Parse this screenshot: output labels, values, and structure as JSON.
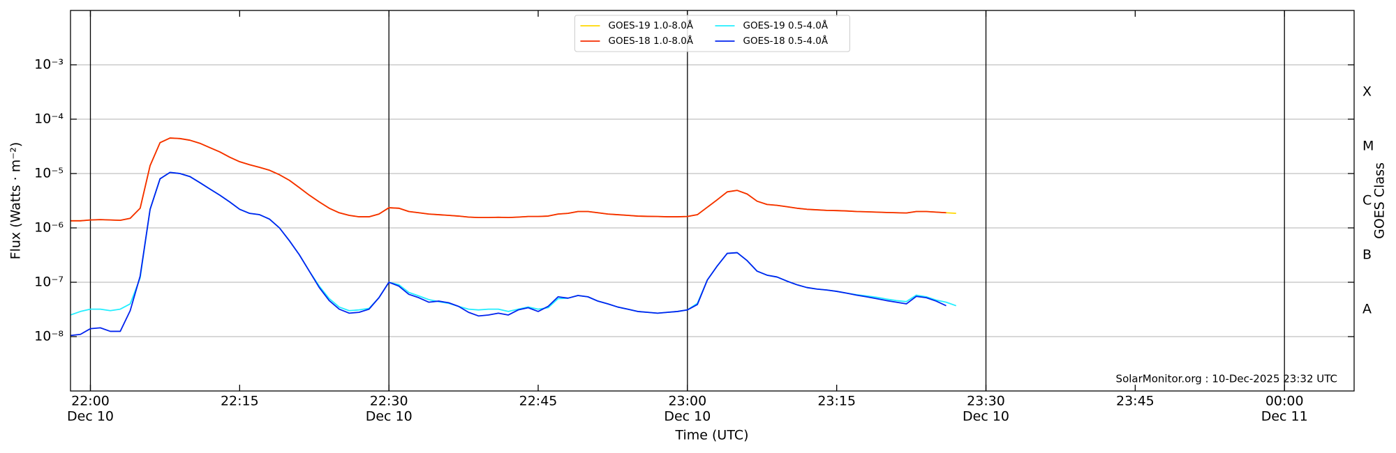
{
  "chart_data": {
    "type": "line",
    "y_label": "Flux (Watts · m⁻²)",
    "x_label": "Time (UTC)",
    "y2_label": "GOES Class",
    "annotation": "SolarMonitor.org : 10-Dec-2025 23:32 UTC",
    "log_scale": true,
    "grid": true,
    "legend_corner": "upper center",
    "xlim": [
      "2025-12-10T21:58",
      "2025-12-11T00:07"
    ],
    "xticks": [
      {
        "value": "2025-12-10T22:00",
        "label": [
          "22:00",
          "Dec 10"
        ]
      },
      {
        "value": "2025-12-10T22:15",
        "label": [
          "22:15"
        ]
      },
      {
        "value": "2025-12-10T22:30",
        "label": [
          "22:30",
          "Dec 10"
        ]
      },
      {
        "value": "2025-12-10T22:45",
        "label": [
          "22:45"
        ]
      },
      {
        "value": "2025-12-10T23:00",
        "label": [
          "23:00",
          "Dec 10"
        ]
      },
      {
        "value": "2025-12-10T23:15",
        "label": [
          "23:15"
        ]
      },
      {
        "value": "2025-12-10T23:30",
        "label": [
          "23:30",
          "Dec 10"
        ]
      },
      {
        "value": "2025-12-10T23:45",
        "label": [
          "23:45"
        ]
      },
      {
        "value": "2025-12-11T00:00",
        "label": [
          "00:00",
          "Dec 11"
        ]
      }
    ],
    "vlines": [
      "2025-12-10T22:00",
      "2025-12-10T22:30",
      "2025-12-10T23:00",
      "2025-12-10T23:30",
      "2025-12-11T00:00"
    ],
    "ylim": [
      1e-09,
      0.01
    ],
    "yticks": [
      {
        "value": 1e-08,
        "label": "10⁻⁸"
      },
      {
        "value": 1e-07,
        "label": "10⁻⁷"
      },
      {
        "value": 1e-06,
        "label": "10⁻⁶"
      },
      {
        "value": 1e-05,
        "label": "10⁻⁵"
      },
      {
        "value": 0.0001,
        "label": "10⁻⁴"
      },
      {
        "value": 0.001,
        "label": "10⁻³"
      }
    ],
    "y2lim": [
      1e-09,
      0.01
    ],
    "y2ticks": [
      {
        "value": 1e-08,
        "label": "A"
      },
      {
        "value": 1e-07,
        "label": "B"
      },
      {
        "value": 1e-06,
        "label": "C"
      },
      {
        "value": 1e-05,
        "label": "M"
      },
      {
        "value": 0.0001,
        "label": "X"
      }
    ],
    "x": [
      "2025-12-10T21:58",
      "2025-12-10T21:59",
      "2025-12-10T22:00",
      "2025-12-10T22:01",
      "2025-12-10T22:02",
      "2025-12-10T22:03",
      "2025-12-10T22:04",
      "2025-12-10T22:05",
      "2025-12-10T22:06",
      "2025-12-10T22:07",
      "2025-12-10T22:08",
      "2025-12-10T22:09",
      "2025-12-10T22:10",
      "2025-12-10T22:11",
      "2025-12-10T22:12",
      "2025-12-10T22:13",
      "2025-12-10T22:14",
      "2025-12-10T22:15",
      "2025-12-10T22:16",
      "2025-12-10T22:17",
      "2025-12-10T22:18",
      "2025-12-10T22:19",
      "2025-12-10T22:20",
      "2025-12-10T22:21",
      "2025-12-10T22:22",
      "2025-12-10T22:23",
      "2025-12-10T22:24",
      "2025-12-10T22:25",
      "2025-12-10T22:26",
      "2025-12-10T22:27",
      "2025-12-10T22:28",
      "2025-12-10T22:29",
      "2025-12-10T22:30",
      "2025-12-10T22:31",
      "2025-12-10T22:32",
      "2025-12-10T22:33",
      "2025-12-10T22:34",
      "2025-12-10T22:35",
      "2025-12-10T22:36",
      "2025-12-10T22:37",
      "2025-12-10T22:38",
      "2025-12-10T22:39",
      "2025-12-10T22:40",
      "2025-12-10T22:41",
      "2025-12-10T22:42",
      "2025-12-10T22:43",
      "2025-12-10T22:44",
      "2025-12-10T22:45",
      "2025-12-10T22:46",
      "2025-12-10T22:47",
      "2025-12-10T22:48",
      "2025-12-10T22:49",
      "2025-12-10T22:50",
      "2025-12-10T22:51",
      "2025-12-10T22:52",
      "2025-12-10T22:53",
      "2025-12-10T22:54",
      "2025-12-10T22:55",
      "2025-12-10T22:56",
      "2025-12-10T22:57",
      "2025-12-10T22:58",
      "2025-12-10T22:59",
      "2025-12-10T23:00",
      "2025-12-10T23:01",
      "2025-12-10T23:02",
      "2025-12-10T23:03",
      "2025-12-10T23:04",
      "2025-12-10T23:05",
      "2025-12-10T23:06",
      "2025-12-10T23:07",
      "2025-12-10T23:08",
      "2025-12-10T23:09",
      "2025-12-10T23:10",
      "2025-12-10T23:11",
      "2025-12-10T23:12",
      "2025-12-10T23:13",
      "2025-12-10T23:14",
      "2025-12-10T23:15",
      "2025-12-10T23:16",
      "2025-12-10T23:17",
      "2025-12-10T23:18",
      "2025-12-10T23:19",
      "2025-12-10T23:20",
      "2025-12-10T23:21",
      "2025-12-10T23:22",
      "2025-12-10T23:23",
      "2025-12-10T23:24",
      "2025-12-10T23:25",
      "2025-12-10T23:26",
      "2025-12-10T23:27"
    ],
    "series": [
      {
        "name": "GOES-19 1.0-8.0Å",
        "color": "#ffd700",
        "values": [
          1.35e-06,
          1.35e-06,
          1.4e-06,
          1.42e-06,
          1.4e-06,
          1.38e-06,
          1.5e-06,
          2.3e-06,
          1.4e-05,
          3.7e-05,
          4.5e-05,
          4.4e-05,
          4.1e-05,
          3.6e-05,
          3e-05,
          2.5e-05,
          2e-05,
          1.65e-05,
          1.45e-05,
          1.3e-05,
          1.15e-05,
          9.5e-06,
          7.5e-06,
          5.5e-06,
          4e-06,
          3e-06,
          2.3e-06,
          1.9e-06,
          1.7e-06,
          1.6e-06,
          1.6e-06,
          1.8e-06,
          2.35e-06,
          2.3e-06,
          2e-06,
          1.9e-06,
          1.8e-06,
          1.75e-06,
          1.7e-06,
          1.65e-06,
          1.58e-06,
          1.55e-06,
          1.55e-06,
          1.57e-06,
          1.55e-06,
          1.58e-06,
          1.62e-06,
          1.62e-06,
          1.65e-06,
          1.8e-06,
          1.85e-06,
          2e-06,
          2e-06,
          1.9e-06,
          1.8e-06,
          1.75e-06,
          1.7e-06,
          1.65e-06,
          1.63e-06,
          1.62e-06,
          1.6e-06,
          1.6e-06,
          1.62e-06,
          1.75e-06,
          2.4e-06,
          3.3e-06,
          4.6e-06,
          4.9e-06,
          4.2e-06,
          3.1e-06,
          2.7e-06,
          2.6e-06,
          2.45e-06,
          2.3e-06,
          2.2e-06,
          2.15e-06,
          2.1e-06,
          2.08e-06,
          2.05e-06,
          2e-06,
          1.98e-06,
          1.95e-06,
          1.92e-06,
          1.9e-06,
          1.88e-06,
          2e-06,
          2e-06,
          1.95e-06,
          1.9e-06,
          1.85e-06
        ]
      },
      {
        "name": "GOES-18 1.0-8.0Å",
        "color": "#f52b00",
        "values": [
          1.35e-06,
          1.35e-06,
          1.4e-06,
          1.42e-06,
          1.4e-06,
          1.38e-06,
          1.5e-06,
          2.3e-06,
          1.4e-05,
          3.7e-05,
          4.5e-05,
          4.4e-05,
          4.1e-05,
          3.6e-05,
          3e-05,
          2.5e-05,
          2e-05,
          1.65e-05,
          1.45e-05,
          1.3e-05,
          1.15e-05,
          9.5e-06,
          7.5e-06,
          5.5e-06,
          4e-06,
          3e-06,
          2.3e-06,
          1.9e-06,
          1.7e-06,
          1.6e-06,
          1.6e-06,
          1.8e-06,
          2.35e-06,
          2.3e-06,
          2e-06,
          1.9e-06,
          1.8e-06,
          1.75e-06,
          1.7e-06,
          1.65e-06,
          1.58e-06,
          1.55e-06,
          1.55e-06,
          1.57e-06,
          1.55e-06,
          1.58e-06,
          1.62e-06,
          1.62e-06,
          1.65e-06,
          1.8e-06,
          1.85e-06,
          2e-06,
          2e-06,
          1.9e-06,
          1.8e-06,
          1.75e-06,
          1.7e-06,
          1.65e-06,
          1.63e-06,
          1.62e-06,
          1.6e-06,
          1.6e-06,
          1.62e-06,
          1.75e-06,
          2.4e-06,
          3.3e-06,
          4.6e-06,
          4.9e-06,
          4.2e-06,
          3.1e-06,
          2.7e-06,
          2.6e-06,
          2.45e-06,
          2.3e-06,
          2.2e-06,
          2.15e-06,
          2.1e-06,
          2.08e-06,
          2.05e-06,
          2e-06,
          1.98e-06,
          1.95e-06,
          1.92e-06,
          1.9e-06,
          1.88e-06,
          2e-06,
          2e-06,
          1.95e-06,
          1.9e-06,
          null
        ]
      },
      {
        "name": "GOES-19 0.5-4.0Å",
        "color": "#22eeff",
        "values": [
          2.5e-08,
          2.9e-08,
          3.2e-08,
          3.2e-08,
          3e-08,
          3.2e-08,
          4e-08,
          1.2e-07,
          2.2e-06,
          8e-06,
          1.05e-05,
          1e-05,
          8.8e-06,
          6.8e-06,
          5.2e-06,
          4e-06,
          3e-06,
          2.2e-06,
          1.85e-06,
          1.75e-06,
          1.45e-06,
          1e-06,
          5.8e-07,
          3.2e-07,
          1.6e-07,
          8.5e-08,
          5e-08,
          3.5e-08,
          3e-08,
          3.1e-08,
          3.3e-08,
          5.2e-08,
          1e-07,
          9e-08,
          6.5e-08,
          5.6e-08,
          4.8e-08,
          4.4e-08,
          4.1e-08,
          3.6e-08,
          3.2e-08,
          3.1e-08,
          3.2e-08,
          3.2e-08,
          2.9e-08,
          3.2e-08,
          3.5e-08,
          3.2e-08,
          3.4e-08,
          5e-08,
          5.1e-08,
          5.7e-08,
          5.4e-08,
          4.5e-08,
          4e-08,
          3.5e-08,
          3.2e-08,
          2.9e-08,
          2.8e-08,
          2.7e-08,
          2.8e-08,
          2.9e-08,
          3.1e-08,
          4.1e-08,
          1.1e-07,
          2e-07,
          3.4e-07,
          3.5e-07,
          2.5e-07,
          1.6e-07,
          1.35e-07,
          1.25e-07,
          1.05e-07,
          9e-08,
          8e-08,
          7.5e-08,
          7.2e-08,
          6.8e-08,
          6.3e-08,
          5.9e-08,
          5.6e-08,
          5.3e-08,
          4.9e-08,
          4.6e-08,
          4.4e-08,
          5.8e-08,
          5.4e-08,
          4.7e-08,
          4.3e-08,
          3.7e-08
        ]
      },
      {
        "name": "GOES-18 0.5-4.0Å",
        "color": "#0022ee",
        "values": [
          1.05e-08,
          1.1e-08,
          1.4e-08,
          1.45e-08,
          1.25e-08,
          1.25e-08,
          3e-08,
          1.3e-07,
          2.2e-06,
          8e-06,
          1.05e-05,
          1e-05,
          8.8e-06,
          6.8e-06,
          5.2e-06,
          4e-06,
          3e-06,
          2.2e-06,
          1.85e-06,
          1.75e-06,
          1.45e-06,
          1e-06,
          5.8e-07,
          3.2e-07,
          1.6e-07,
          8e-08,
          4.6e-08,
          3.2e-08,
          2.7e-08,
          2.8e-08,
          3.2e-08,
          5.2e-08,
          1e-07,
          8.5e-08,
          6e-08,
          5.2e-08,
          4.3e-08,
          4.5e-08,
          4.2e-08,
          3.6e-08,
          2.8e-08,
          2.4e-08,
          2.5e-08,
          2.7e-08,
          2.5e-08,
          3.1e-08,
          3.4e-08,
          2.9e-08,
          3.6e-08,
          5.4e-08,
          5.1e-08,
          5.7e-08,
          5.4e-08,
          4.5e-08,
          4e-08,
          3.5e-08,
          3.2e-08,
          2.9e-08,
          2.8e-08,
          2.7e-08,
          2.8e-08,
          2.9e-08,
          3.1e-08,
          3.9e-08,
          1.1e-07,
          2e-07,
          3.4e-07,
          3.5e-07,
          2.5e-07,
          1.6e-07,
          1.35e-07,
          1.25e-07,
          1.05e-07,
          9e-08,
          8e-08,
          7.5e-08,
          7.2e-08,
          6.8e-08,
          6.3e-08,
          5.8e-08,
          5.4e-08,
          5e-08,
          4.6e-08,
          4.3e-08,
          4e-08,
          5.5e-08,
          5.2e-08,
          4.5e-08,
          3.7e-08,
          null
        ]
      }
    ]
  }
}
